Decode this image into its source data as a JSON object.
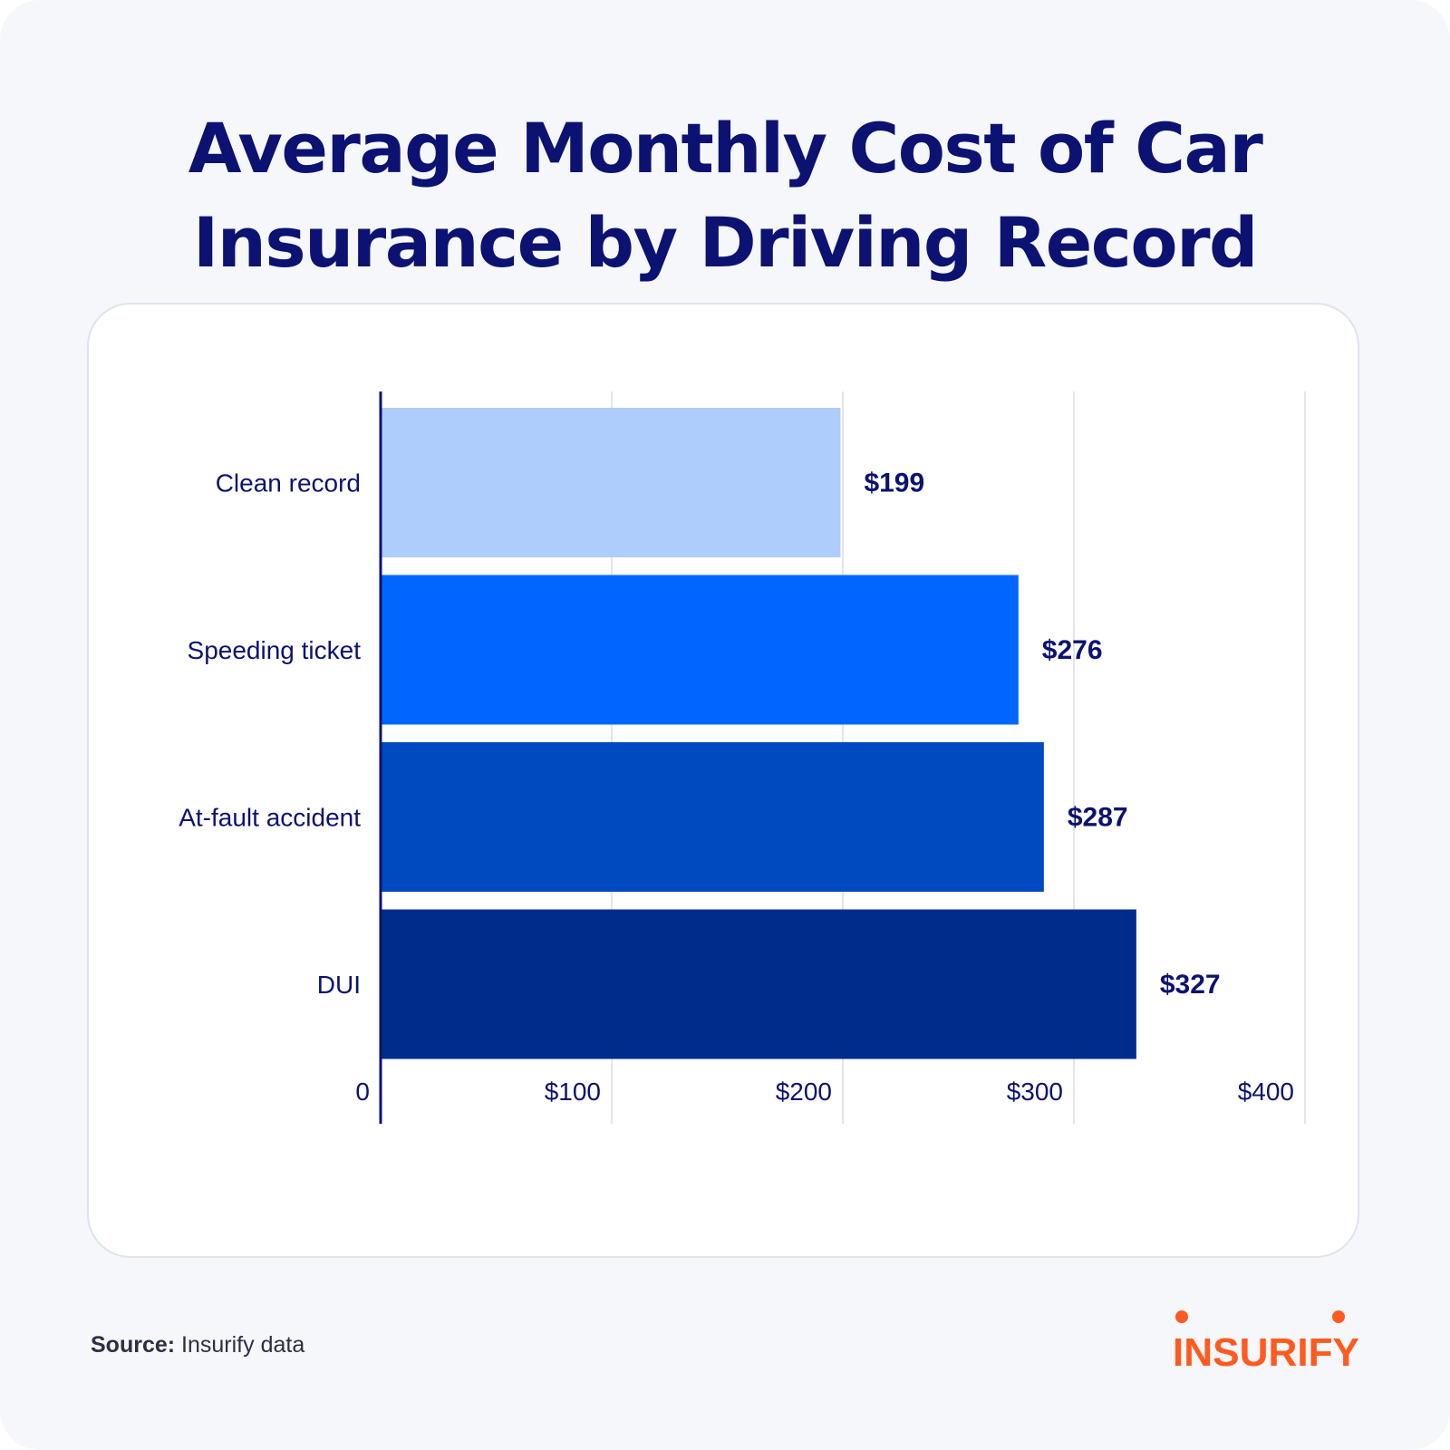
{
  "title_line1": "Average Monthly Cost of Car",
  "title_line2": "Insurance by Driving Record",
  "source": {
    "label": "Source:",
    "text": "Insurify data"
  },
  "brand": {
    "name": "INSURIFY",
    "color": "#ff5a1f"
  },
  "chart_data": {
    "type": "bar",
    "orientation": "horizontal",
    "title": "Average Monthly Cost of Car Insurance by Driving Record",
    "categories": [
      "Clean record",
      "Speeding ticket",
      "At-fault accident",
      "DUI"
    ],
    "values": [
      199,
      276,
      287,
      327
    ],
    "value_labels": [
      "$199",
      "$276",
      "$287",
      "$327"
    ],
    "colors": [
      "#aeccfc",
      "#0066ff",
      "#004ac0",
      "#002d8b"
    ],
    "x_ticks": [
      0,
      100,
      200,
      300,
      400
    ],
    "x_tick_labels": [
      "0",
      "$100",
      "$200",
      "$300",
      "$400"
    ],
    "xlim": [
      0,
      400
    ],
    "grid": true,
    "legend": "none"
  }
}
